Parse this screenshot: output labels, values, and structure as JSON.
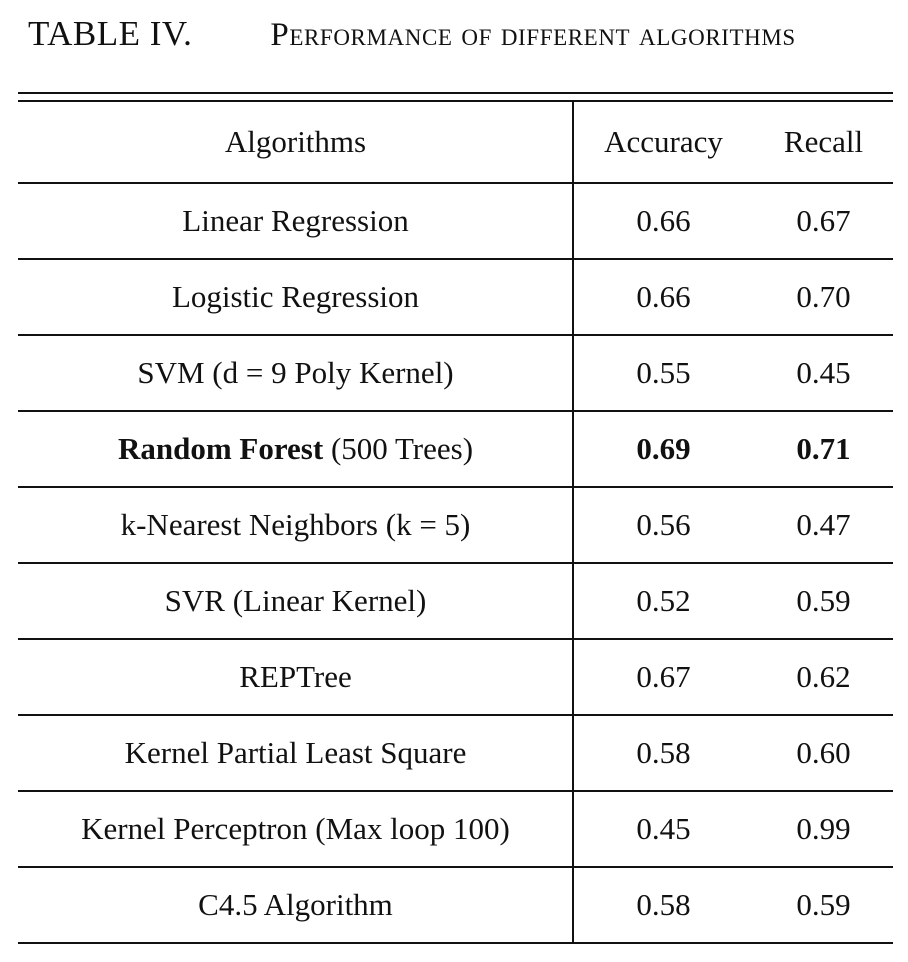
{
  "caption": {
    "label": "TABLE IV.",
    "title": "Performance of different algorithms"
  },
  "table": {
    "headers": {
      "algorithm": "Algorithms",
      "accuracy": "Accuracy",
      "recall": "Recall"
    },
    "rows": [
      {
        "name": "Linear Regression",
        "suffix": "",
        "accuracy": "0.66",
        "recall": "0.67",
        "bold": false
      },
      {
        "name": "Logistic Regression",
        "suffix": "",
        "accuracy": "0.66",
        "recall": "0.70",
        "bold": false
      },
      {
        "name": "SVM (d = 9 Poly Kernel)",
        "suffix": "",
        "accuracy": "0.55",
        "recall": "0.45",
        "bold": false
      },
      {
        "name": "Random Forest",
        "suffix": " (500 Trees)",
        "accuracy": "0.69",
        "recall": "0.71",
        "bold": true
      },
      {
        "name": "k-Nearest Neighbors (k = 5)",
        "suffix": "",
        "accuracy": "0.56",
        "recall": "0.47",
        "bold": false
      },
      {
        "name": "SVR (Linear Kernel)",
        "suffix": "",
        "accuracy": "0.52",
        "recall": "0.59",
        "bold": false
      },
      {
        "name": "REPTree",
        "suffix": "",
        "accuracy": "0.67",
        "recall": "0.62",
        "bold": false
      },
      {
        "name": "Kernel Partial Least Square",
        "suffix": "",
        "accuracy": "0.58",
        "recall": "0.60",
        "bold": false
      },
      {
        "name": "Kernel Perceptron (Max loop 100)",
        "suffix": "",
        "accuracy": "0.45",
        "recall": "0.99",
        "bold": false
      },
      {
        "name": "C4.5 Algorithm",
        "suffix": "",
        "accuracy": "0.58",
        "recall": "0.59",
        "bold": false
      }
    ]
  }
}
